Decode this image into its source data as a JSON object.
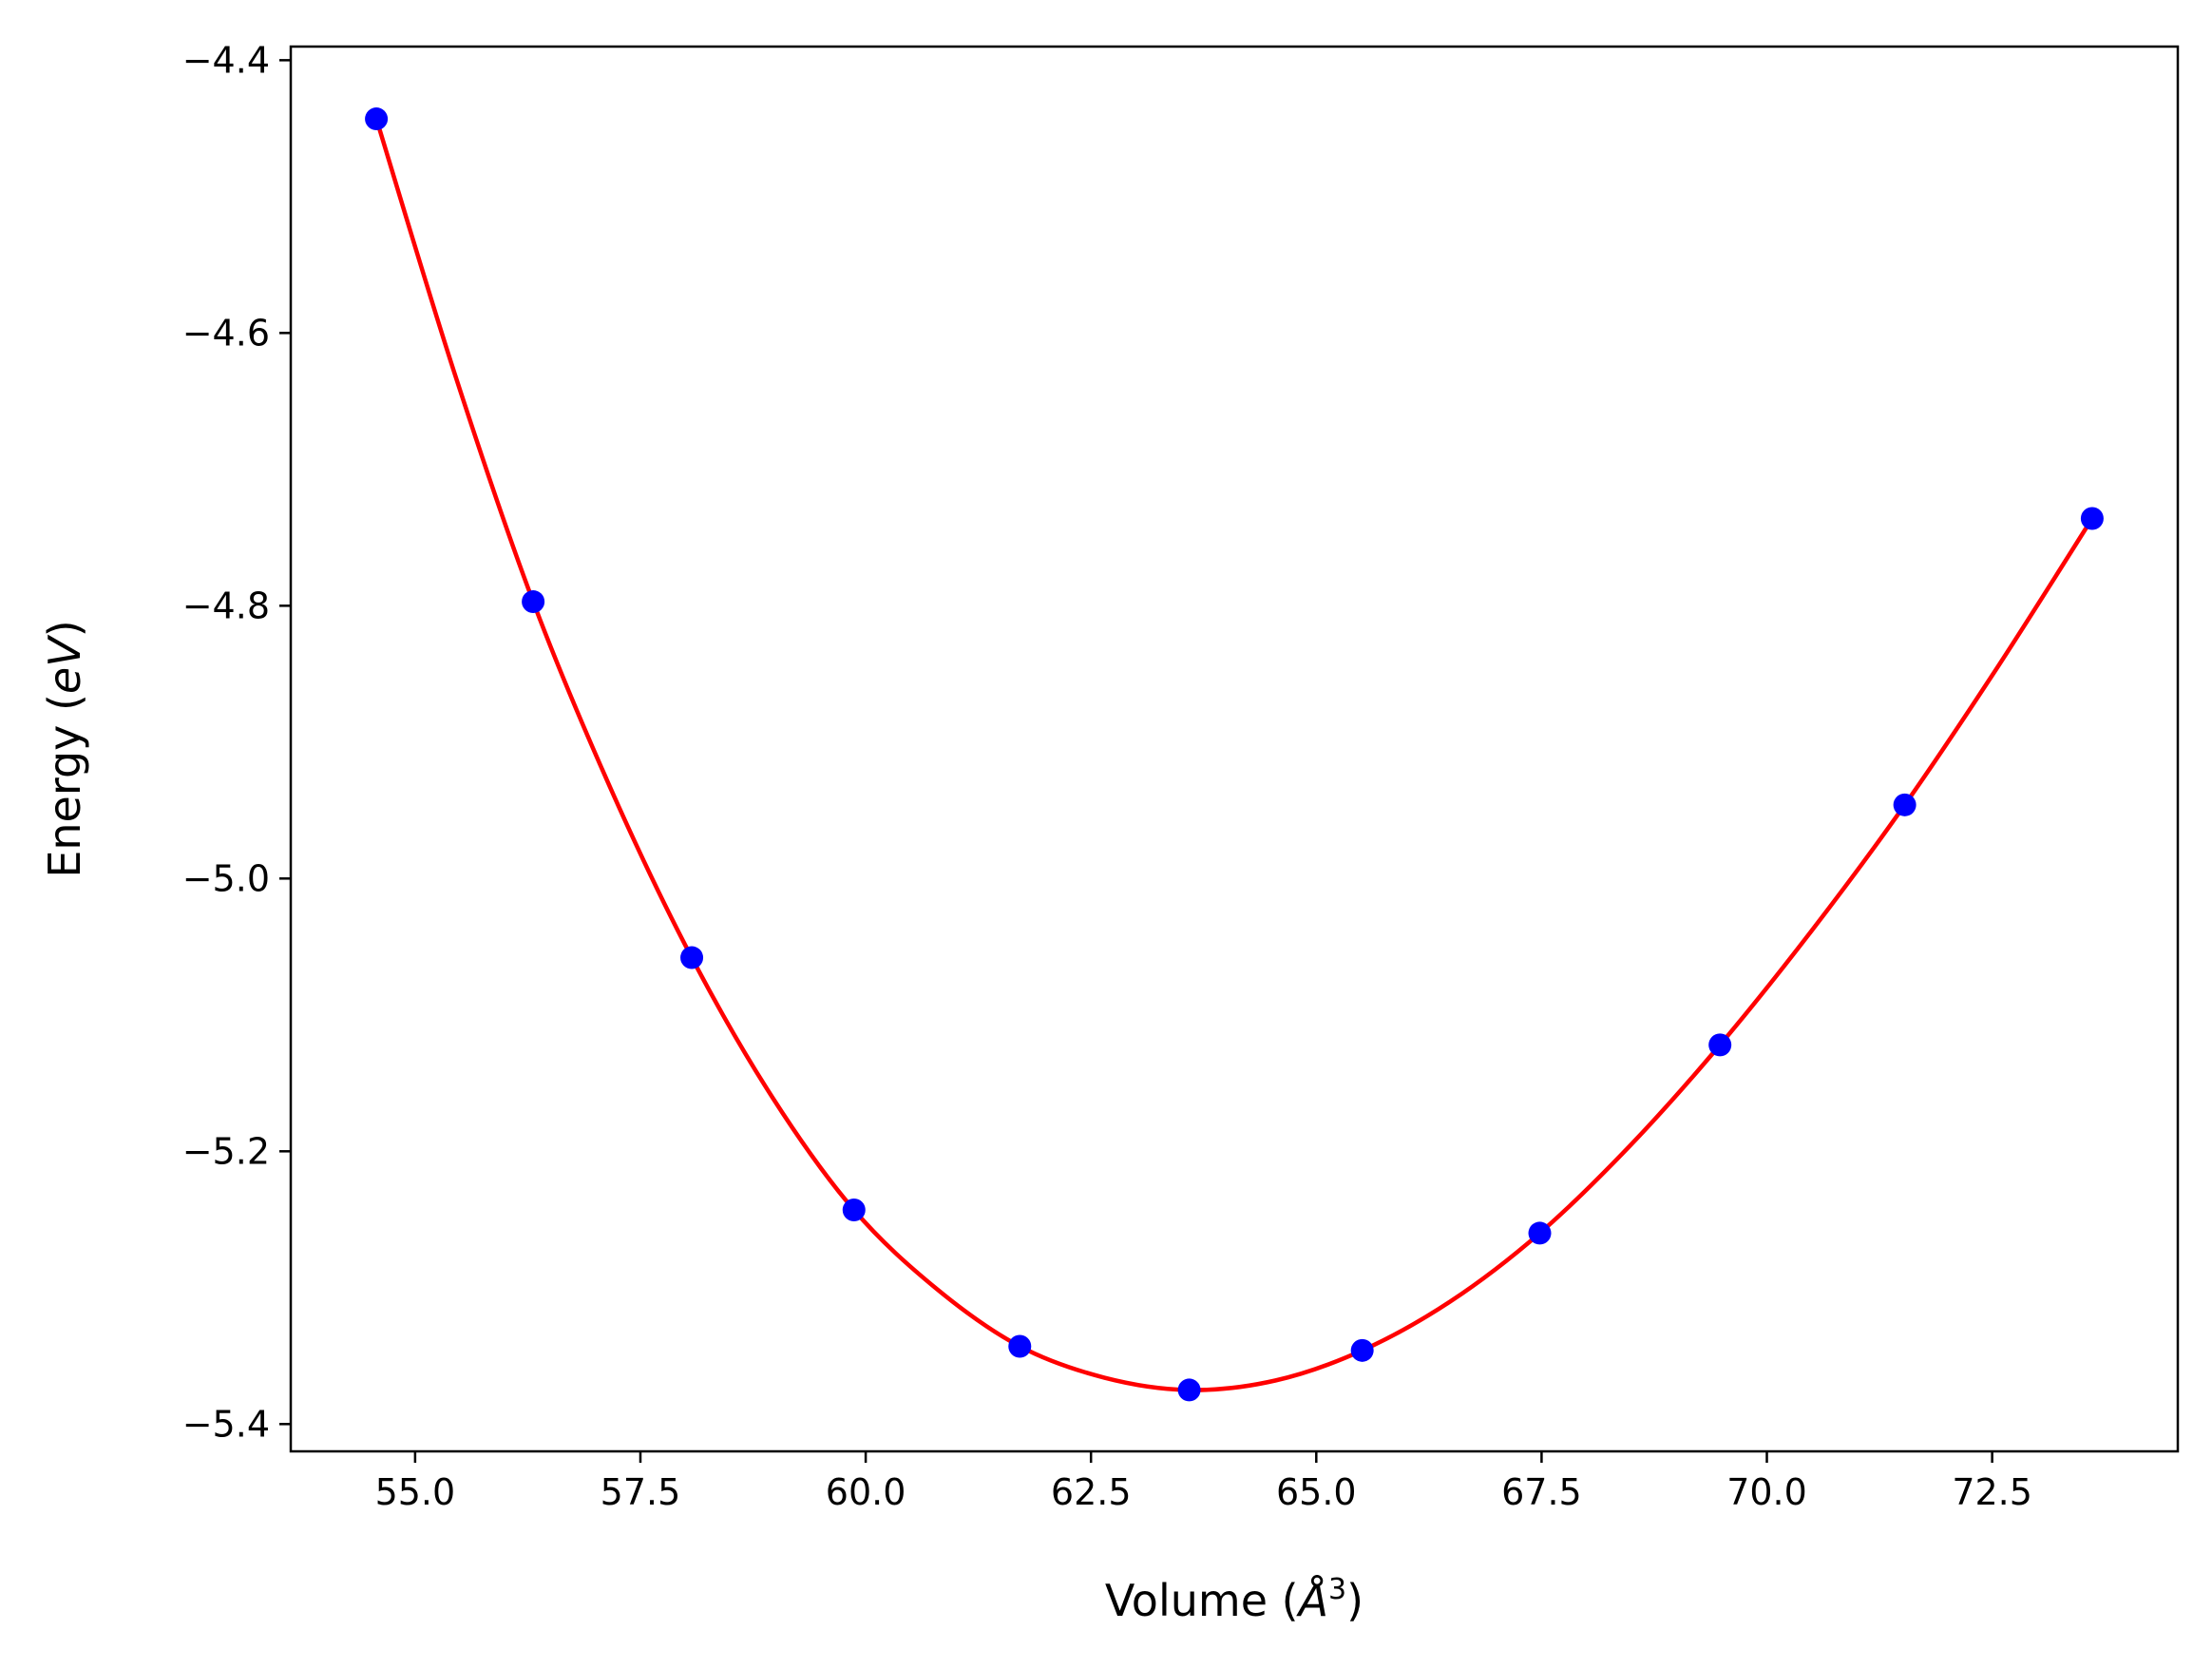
{
  "chart_data": {
    "type": "scatter",
    "title": "",
    "xlabel_parts": [
      "Volume (",
      "Å",
      "3",
      ")"
    ],
    "ylabel_parts": [
      "Energy (",
      "eV",
      ")"
    ],
    "xlim": [
      53.62,
      74.56
    ],
    "ylim": [
      -5.42,
      -4.39
    ],
    "x_ticks": [
      55.0,
      57.5,
      60.0,
      62.5,
      65.0,
      67.5,
      70.0,
      72.5
    ],
    "x_tick_labels": [
      "55.0",
      "57.5",
      "60.0",
      "62.5",
      "65.0",
      "67.5",
      "70.0",
      "72.5"
    ],
    "y_ticks": [
      -4.4,
      -4.6,
      -4.8,
      -5.0,
      -5.2,
      -5.4
    ],
    "y_tick_labels": [
      "−4.4",
      "−4.6",
      "−4.8",
      "−5.0",
      "−5.2",
      "−5.4"
    ],
    "grid": false,
    "series": [
      {
        "kind": "points",
        "color": "#0000ff",
        "x": [
          54.57,
          56.31,
          58.07,
          59.87,
          61.71,
          63.59,
          65.51,
          67.48,
          69.48,
          71.53,
          73.61
        ],
        "y": [
          -4.443,
          -4.797,
          -5.058,
          -5.243,
          -5.343,
          -5.375,
          -5.346,
          -5.26,
          -5.122,
          -4.946,
          -4.736
        ]
      },
      {
        "kind": "fit-curve",
        "color": "#ff0000",
        "x": [
          54.57,
          55.44,
          56.31,
          57.19,
          58.07,
          58.97,
          59.87,
          60.79,
          61.71,
          62.65,
          63.59,
          64.55,
          65.51,
          66.49,
          67.48,
          68.48,
          69.48,
          70.5,
          71.53,
          72.57,
          73.61
        ],
        "y": [
          -4.443,
          -4.63,
          -4.797,
          -4.937,
          -5.058,
          -5.161,
          -5.243,
          -5.301,
          -5.343,
          -5.366,
          -5.375,
          -5.368,
          -5.346,
          -5.31,
          -5.26,
          -5.196,
          -5.122,
          -5.038,
          -4.946,
          -4.844,
          -4.736
        ]
      }
    ]
  }
}
